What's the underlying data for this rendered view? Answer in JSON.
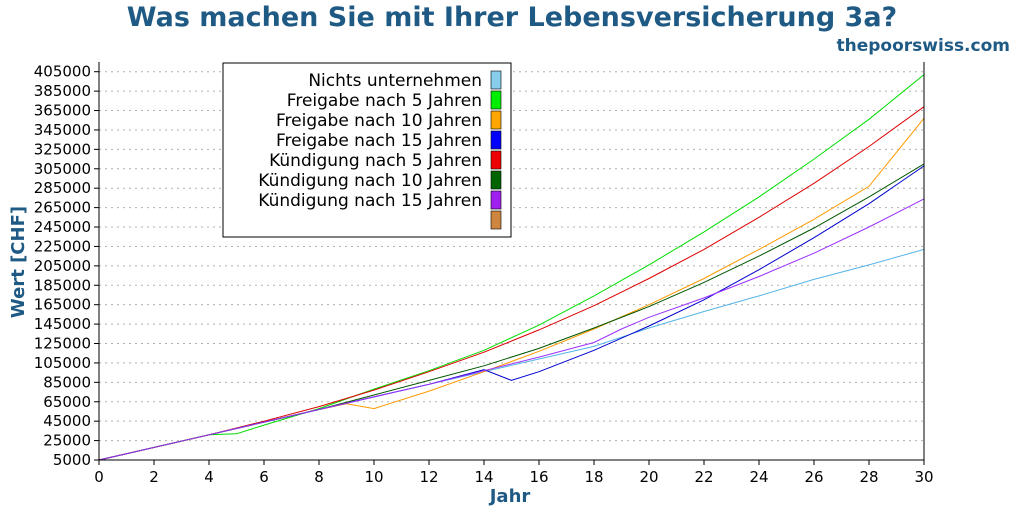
{
  "chart_data": {
    "type": "line",
    "title": "Was machen Sie mit Ihrer Lebensversicherung 3a?",
    "subtitle": "thepoorswiss.com",
    "xlabel": "Jahr",
    "ylabel": "Wert [CHF]",
    "xlim": [
      0,
      30
    ],
    "ylim": [
      5000,
      415000
    ],
    "x_ticks": [
      "0",
      "2",
      "4",
      "6",
      "8",
      "10",
      "12",
      "14",
      "16",
      "18",
      "20",
      "22",
      "24",
      "26",
      "28",
      "30"
    ],
    "y_ticks": [
      "5000",
      "25000",
      "45000",
      "65000",
      "85000",
      "105000",
      "125000",
      "145000",
      "165000",
      "185000",
      "205000",
      "225000",
      "245000",
      "265000",
      "285000",
      "305000",
      "325000",
      "345000",
      "365000",
      "385000",
      "405000"
    ],
    "grid": true,
    "legend_position": "top-left",
    "series": [
      {
        "name": "Nichts unternehmen",
        "color": "#56b4e9",
        "legend_color": "#87ceeb",
        "points": [
          [
            0,
            5000
          ],
          [
            2,
            18000
          ],
          [
            4,
            31000
          ],
          [
            6,
            44000
          ],
          [
            8,
            57000
          ],
          [
            10,
            70000
          ],
          [
            12,
            83000
          ],
          [
            14,
            96000
          ],
          [
            16,
            109000
          ],
          [
            18,
            122000
          ],
          [
            20,
            141000
          ],
          [
            22,
            158000
          ],
          [
            24,
            174000
          ],
          [
            26,
            191000
          ],
          [
            28,
            206000
          ],
          [
            30,
            222000
          ]
        ]
      },
      {
        "name": "Freigabe nach 5 Jahren",
        "color": "#00dd00",
        "legend_color": "#00ee00",
        "points": [
          [
            0,
            5000
          ],
          [
            4,
            31000
          ],
          [
            5,
            32000
          ],
          [
            6,
            41000
          ],
          [
            8,
            58000
          ],
          [
            10,
            78000
          ],
          [
            12,
            97000
          ],
          [
            14,
            118000
          ],
          [
            16,
            144000
          ],
          [
            18,
            174000
          ],
          [
            20,
            206000
          ],
          [
            22,
            240000
          ],
          [
            24,
            276000
          ],
          [
            26,
            315000
          ],
          [
            28,
            356000
          ],
          [
            30,
            402000
          ]
        ]
      },
      {
        "name": "Freigabe nach 10 Jahren",
        "color": "#ff9900",
        "legend_color": "#ffa500",
        "points": [
          [
            0,
            5000
          ],
          [
            4,
            31000
          ],
          [
            6,
            44000
          ],
          [
            8,
            57000
          ],
          [
            9,
            63000
          ],
          [
            10,
            58000
          ],
          [
            12,
            76000
          ],
          [
            14,
            96000
          ],
          [
            16,
            117000
          ],
          [
            18,
            140000
          ],
          [
            20,
            165000
          ],
          [
            22,
            192000
          ],
          [
            24,
            222000
          ],
          [
            26,
            253000
          ],
          [
            28,
            287000
          ],
          [
            30,
            357000
          ]
        ]
      },
      {
        "name": "Freigabe nach 15 Jahren",
        "color": "#0000cc",
        "legend_color": "#0000ff",
        "points": [
          [
            0,
            5000
          ],
          [
            4,
            31000
          ],
          [
            6,
            44000
          ],
          [
            8,
            57000
          ],
          [
            10,
            70000
          ],
          [
            12,
            83000
          ],
          [
            14,
            98000
          ],
          [
            15,
            87000
          ],
          [
            16,
            96000
          ],
          [
            18,
            118000
          ],
          [
            20,
            143000
          ],
          [
            22,
            170000
          ],
          [
            24,
            201000
          ],
          [
            26,
            234000
          ],
          [
            28,
            269000
          ],
          [
            30,
            308000
          ]
        ]
      },
      {
        "name": "Kündigung nach 5 Jahren",
        "color": "#dd0000",
        "legend_color": "#ee0000",
        "points": [
          [
            0,
            5000
          ],
          [
            4,
            31000
          ],
          [
            6,
            45000
          ],
          [
            8,
            60000
          ],
          [
            10,
            77000
          ],
          [
            12,
            96000
          ],
          [
            14,
            116000
          ],
          [
            16,
            139000
          ],
          [
            18,
            164000
          ],
          [
            20,
            192000
          ],
          [
            22,
            222000
          ],
          [
            24,
            255000
          ],
          [
            26,
            290000
          ],
          [
            28,
            328000
          ],
          [
            30,
            369000
          ]
        ]
      },
      {
        "name": "Kündigung nach 10 Jahren",
        "color": "#005500",
        "legend_color": "#006400",
        "points": [
          [
            0,
            5000
          ],
          [
            4,
            31000
          ],
          [
            6,
            44000
          ],
          [
            8,
            57000
          ],
          [
            10,
            72000
          ],
          [
            12,
            87000
          ],
          [
            14,
            102000
          ],
          [
            16,
            120000
          ],
          [
            18,
            141000
          ],
          [
            20,
            163000
          ],
          [
            22,
            188000
          ],
          [
            24,
            215000
          ],
          [
            26,
            244000
          ],
          [
            28,
            276000
          ],
          [
            30,
            310000
          ]
        ]
      },
      {
        "name": "Kündigung nach 15 Jahren",
        "color": "#9b30ff",
        "legend_color": "#a020f0",
        "points": [
          [
            0,
            5000
          ],
          [
            4,
            31000
          ],
          [
            6,
            44000
          ],
          [
            8,
            57000
          ],
          [
            10,
            70000
          ],
          [
            12,
            83000
          ],
          [
            14,
            97000
          ],
          [
            16,
            111000
          ],
          [
            18,
            126000
          ],
          [
            19,
            140000
          ],
          [
            20,
            152000
          ],
          [
            22,
            172000
          ],
          [
            24,
            194000
          ],
          [
            26,
            218000
          ],
          [
            28,
            245000
          ],
          [
            30,
            274000
          ]
        ]
      },
      {
        "name": "",
        "color": "#cd853f",
        "legend_color": "#cd853f",
        "points": []
      }
    ]
  }
}
